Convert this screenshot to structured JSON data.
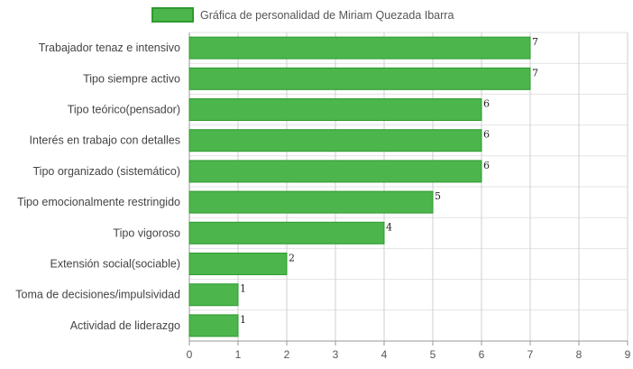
{
  "chart_data": {
    "type": "bar",
    "orientation": "horizontal",
    "title": "",
    "xlabel": "",
    "ylabel": "",
    "categories": [
      "Trabajador tenaz e intensivo",
      "Tipo siempre activo",
      "Tipo teórico(pensador)",
      "Interés en trabajo con detalles",
      "Tipo organizado (sistemático)",
      "Tipo emocionalmente restringido",
      "Tipo vigoroso",
      "Extensión social(sociable)",
      "Toma de decisiones/impulsividad",
      "Actividad de liderazgo"
    ],
    "series": [
      {
        "name": "Gráfica de personalidad de Miriam Quezada Ibarra",
        "values": [
          7,
          7,
          6,
          6,
          6,
          5,
          4,
          2,
          1,
          1
        ],
        "color": "#4cb54c",
        "border_color": "#2e9a2e"
      }
    ],
    "xlim": [
      0,
      9
    ],
    "x_ticks": [
      "0",
      "1",
      "2",
      "3",
      "4",
      "5",
      "6",
      "7",
      "8",
      "9"
    ],
    "grid": true,
    "legend_position": "top-center",
    "data_labels": true
  }
}
